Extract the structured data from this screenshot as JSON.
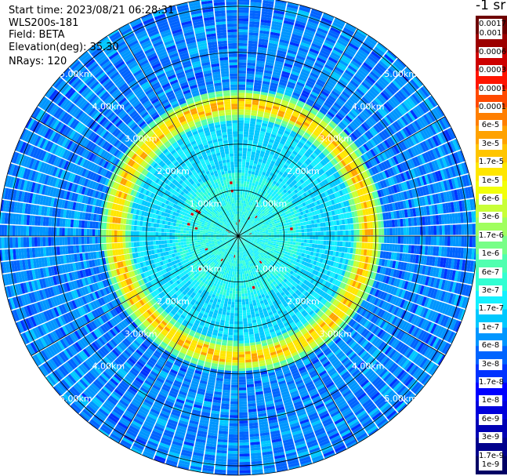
{
  "header": {
    "start_time": "Start time: 2023/08/21 06:28:31",
    "instrument": "WLS200s-181",
    "field": "Field: BETA",
    "elevation": "Elevation(deg): 35.30",
    "nrays": "NRays: 120"
  },
  "colorbar": {
    "unit_label": "-1 sr",
    "labels": [
      "0.0017",
      "0.001",
      "0.0006",
      "0.0003",
      "0.00017",
      "0.0001",
      "6e-5",
      "3e-5",
      "1.7e-5",
      "1e-5",
      "6e-6",
      "3e-6",
      "1.7e-6",
      "1e-6",
      "6e-7",
      "3e-7",
      "1.7e-7",
      "1e-7",
      "6e-8",
      "3e-8",
      "1.7e-8",
      "1e-8",
      "6e-9",
      "3e-9",
      "1.7e-9",
      "1e-9"
    ],
    "colors": [
      "#6e0000",
      "#9c0000",
      "#cd0000",
      "#ff1500",
      "#ff4a00",
      "#ff7f00",
      "#ffa200",
      "#ffc500",
      "#ffe600",
      "#f2ff0a",
      "#c8ff37",
      "#a0ff5f",
      "#78ff87",
      "#50ffaf",
      "#32ffd2",
      "#14f0ff",
      "#00c8ff",
      "#0096ff",
      "#0064ff",
      "#0032ff",
      "#0000ff",
      "#0000dc",
      "#0000b4",
      "#00008c",
      "#000064"
    ]
  },
  "chart_data": {
    "type": "heatmap",
    "projection": "polar (PPI scan)",
    "title": "",
    "rays": 120,
    "range_rings": [
      1.0,
      2.0,
      3.0,
      4.0,
      5.0
    ],
    "range_unit": "km",
    "range_ring_labels": [
      "1.00km",
      "2.00km",
      "3.00km",
      "4.00km",
      "5.00km"
    ],
    "radial_spokes": 12,
    "max_range_km": 5.8,
    "field_values": [
      {
        "range_km": [
          0.0,
          1.4
        ],
        "beta": "6e-7"
      },
      {
        "range_km": [
          1.4,
          2.6
        ],
        "beta": "1.7e-7"
      },
      {
        "range_km": [
          2.6,
          3.1
        ],
        "beta": "1e-5"
      },
      {
        "range_km": [
          3.1,
          5.8
        ],
        "beta": "3e-8"
      }
    ]
  }
}
